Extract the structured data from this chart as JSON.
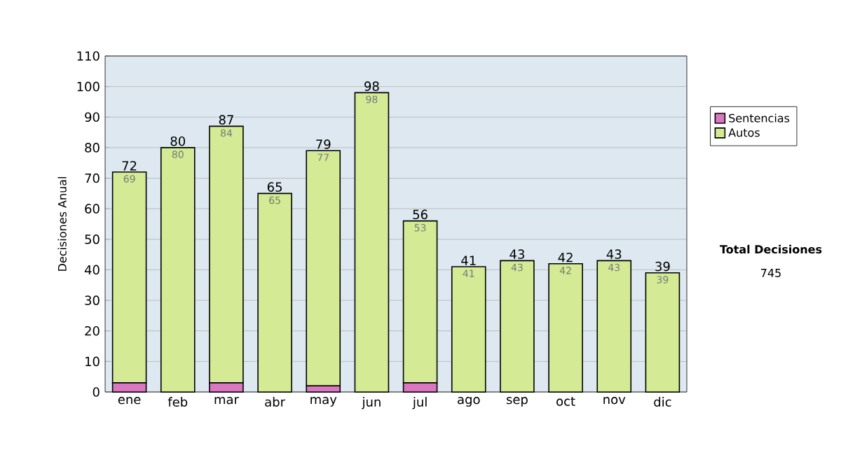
{
  "chart_data": {
    "type": "bar",
    "stacked": true,
    "categories": [
      "ene",
      "feb",
      "mar",
      "abr",
      "may",
      "jun",
      "jul",
      "ago",
      "sep",
      "oct",
      "nov",
      "dic"
    ],
    "series": [
      {
        "name": "Sentencias",
        "color": "#d878c0",
        "values": [
          3,
          0,
          3,
          0,
          2,
          0,
          3,
          0,
          0,
          0,
          0,
          0
        ]
      },
      {
        "name": "Autos",
        "color": "#d4ea94",
        "values": [
          69,
          80,
          84,
          65,
          77,
          98,
          53,
          41,
          43,
          42,
          43,
          39
        ],
        "value_labels": [
          "69",
          "80",
          "84",
          "65",
          "77",
          "98",
          "53",
          "41",
          "43",
          "42",
          "43",
          "39"
        ]
      }
    ],
    "totals": [
      "72",
      "80",
      "87",
      "65",
      "79",
      "98",
      "56",
      "41",
      "43",
      "42",
      "43",
      "39"
    ],
    "ylabel": "Decisiones Anual",
    "ylim": [
      0,
      110
    ],
    "yticks": [
      0,
      10,
      20,
      30,
      40,
      50,
      60,
      70,
      80,
      90,
      100,
      110
    ],
    "grid": "y",
    "legend": "right",
    "annotations": [
      "**Total Decisiones**",
      "745"
    ]
  }
}
